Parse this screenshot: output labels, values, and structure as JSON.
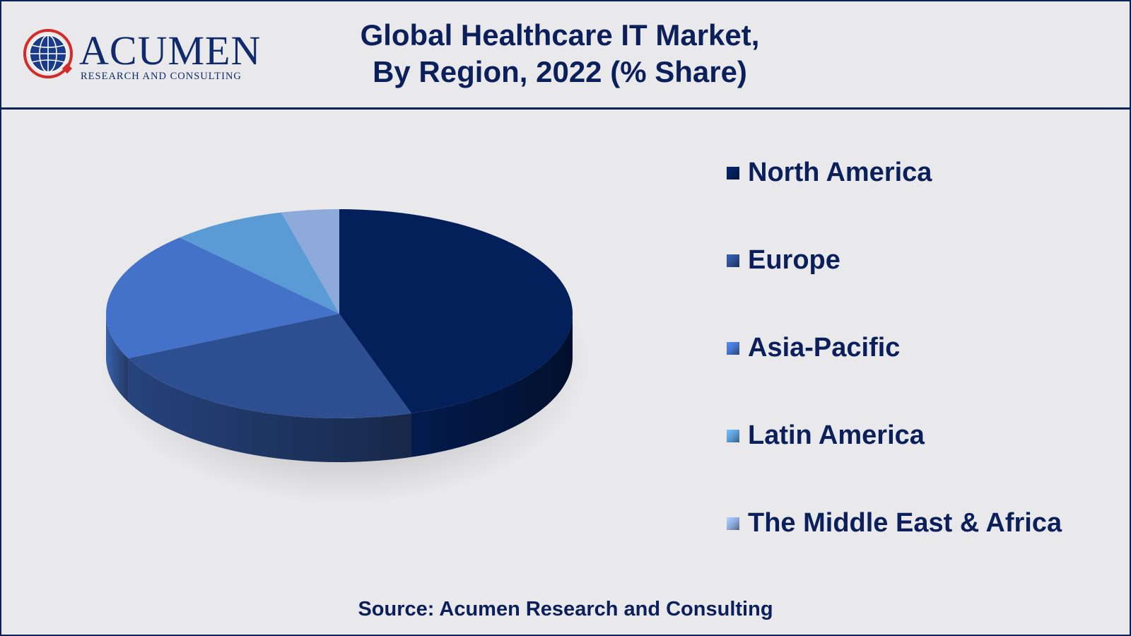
{
  "header": {
    "title_line1": "Global Healthcare IT Market,",
    "title_line2": "By Region, 2022 (% Share)",
    "logo_word": "ACUMEN",
    "logo_sub": "RESEARCH AND CONSULTING"
  },
  "chart_data": {
    "type": "pie",
    "style": "3d",
    "title": "Global Healthcare IT Market, By Region, 2022 (% Share)",
    "categories": [
      "North America",
      "Europe",
      "Asia-Pacific",
      "Latin America",
      "The Middle East & Africa"
    ],
    "values": [
      45,
      23,
      20,
      8,
      4
    ],
    "unit": "% share (estimated, no data labels shown)",
    "colors": [
      "#03205a",
      "#2d4f92",
      "#4472c8",
      "#5b9bd5",
      "#8eaadb"
    ],
    "legend_position": "right"
  },
  "footer": {
    "source": "Source: Acumen Research and Consulting"
  }
}
